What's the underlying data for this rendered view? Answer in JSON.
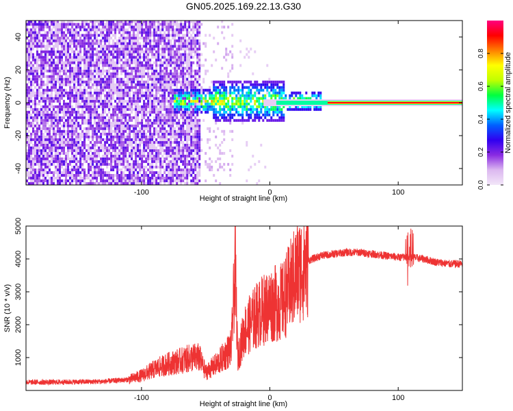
{
  "title": "GN05.2025.169.22.13.G30",
  "chart_data": [
    {
      "type": "heatmap",
      "xlabel": "Height of straight line (km)",
      "ylabel": "Frequency (Hz)",
      "xlim": [
        -190,
        150
      ],
      "ylim": [
        -50,
        50
      ],
      "xticks": [
        -100,
        0,
        100
      ],
      "yticks": [
        -40,
        -20,
        0,
        20,
        40
      ],
      "grid": false,
      "colorbar": {
        "label": "Normalized spectral amplitude",
        "range": [
          0,
          1
        ],
        "ticks": [
          0.0,
          0.2,
          0.4,
          0.6,
          0.8
        ],
        "tick_labels": [
          "0.0",
          "0.2",
          "0.4",
          "0.6",
          "0.8"
        ],
        "colors": [
          "#f2e6f8",
          "#dcb8f0",
          "#8a2be2",
          "#3000f0",
          "#0060ff",
          "#00ffff",
          "#00ff40",
          "#c0ff00",
          "#ffff00",
          "#ff7f00",
          "#ff0000",
          "#ff007f"
        ]
      },
      "regions": [
        {
          "x_range": [
            -190,
            -55
          ],
          "freq_range": [
            -50,
            50
          ],
          "amplitude": 0.1,
          "pattern": "broadband speckle"
        },
        {
          "x_range": [
            -55,
            -30
          ],
          "freq_range": [
            -50,
            50
          ],
          "amplitude": 0.05,
          "pattern": "sparse speckle"
        },
        {
          "x_range": [
            -75,
            40
          ],
          "freq_range": [
            -10,
            10
          ],
          "amplitude": 0.4,
          "pattern": "scattered energy near 0 Hz"
        },
        {
          "x_range": [
            40,
            150
          ],
          "freq_range": [
            -1,
            1
          ],
          "amplitude": 1.0,
          "pattern": "narrow line at 0 Hz"
        }
      ]
    },
    {
      "type": "line",
      "xlabel": "Height of straight line (km)",
      "ylabel": "SNR (10 * v/v)",
      "xlim": [
        -190,
        150
      ],
      "ylim": [
        0,
        5000
      ],
      "xticks": [
        -100,
        0,
        100
      ],
      "yticks": [
        1000,
        2000,
        3000,
        4000,
        5000
      ],
      "grid": false,
      "color": "#ee3333",
      "series": [
        {
          "x": [
            -190,
            -170,
            -150,
            -130,
            -110,
            -100,
            -90,
            -80,
            -70,
            -60,
            -55,
            -50,
            -40,
            -30,
            -27,
            -25,
            -20,
            -10,
            0,
            10,
            20,
            30,
            40,
            50,
            60,
            70,
            80,
            90,
            100,
            110,
            120,
            130,
            140,
            150
          ],
          "values": [
            250,
            250,
            260,
            270,
            330,
            450,
            650,
            800,
            900,
            1000,
            1000,
            550,
            850,
            1300,
            3800,
            1000,
            1800,
            2300,
            2600,
            2700,
            3500,
            3950,
            4100,
            4150,
            4200,
            4200,
            4150,
            4100,
            4050,
            4050,
            4000,
            3900,
            3850,
            3850
          ]
        }
      ]
    }
  ]
}
